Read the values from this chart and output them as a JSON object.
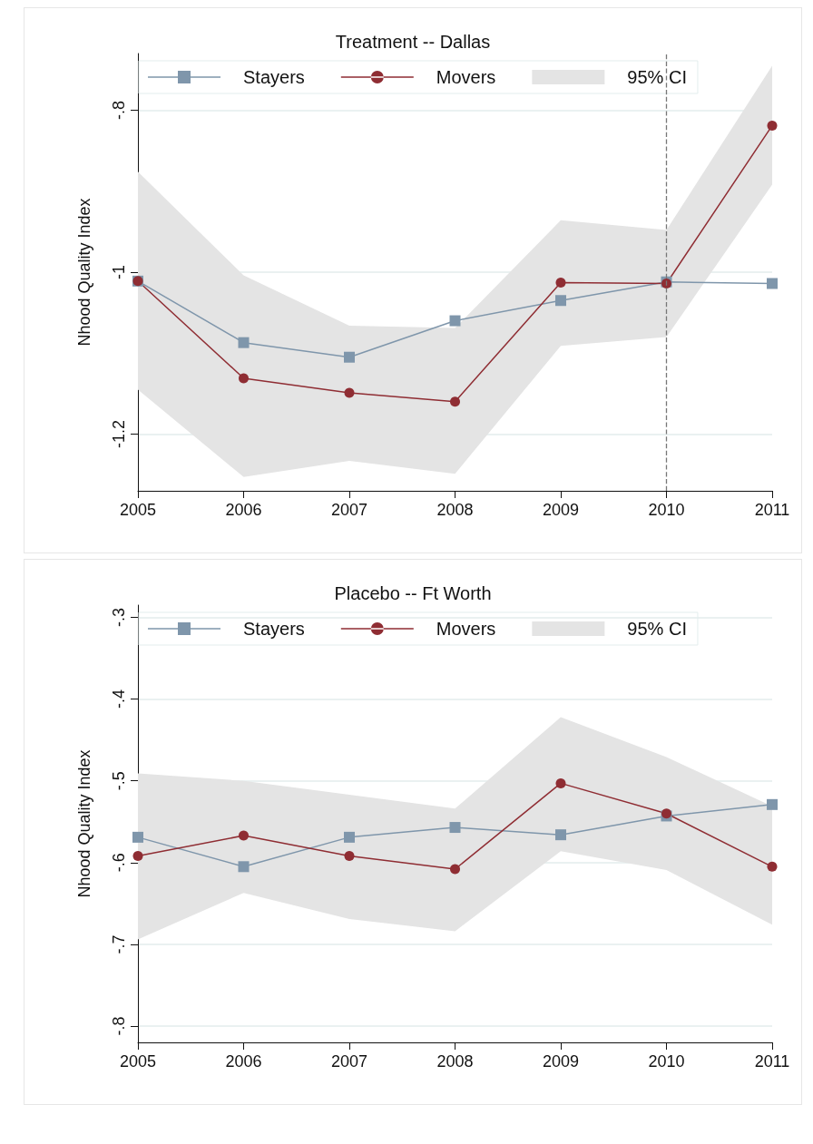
{
  "chart_data": [
    {
      "type": "line",
      "title": "Treatment -- Dallas",
      "ylabel": "Nhood Quality Index",
      "categories": [
        "2005",
        "2006",
        "2007",
        "2008",
        "2009",
        "2010",
        "2011"
      ],
      "ylim": [
        -1.27,
        -0.73
      ],
      "yticks": [
        {
          "value": -0.8,
          "label": "-.8"
        },
        -1,
        {
          "value": -1.2,
          "label": "-1.2"
        }
      ],
      "grid": "y",
      "legend": "top",
      "series": [
        {
          "name": "Stayers",
          "color": "#7f96ab",
          "marker": "square",
          "values": [
            -1.011,
            -1.087,
            -1.105,
            -1.06,
            -1.035,
            -1.012,
            -1.014
          ]
        },
        {
          "name": "Movers",
          "color": "#8f2d33",
          "marker": "circle",
          "values": [
            -1.011,
            -1.131,
            -1.149,
            -1.16,
            -1.013,
            -1.014,
            -0.819
          ]
        },
        {
          "name": "95% CI",
          "type": "area",
          "color": "#e4e4e4",
          "values": [
            null,
            null,
            null,
            null,
            null,
            null,
            null
          ],
          "lower": [
            -1.145,
            -1.253,
            -1.233,
            -1.249,
            -1.091,
            -1.08,
            -0.892
          ],
          "upper": [
            -0.876,
            -1.004,
            -1.066,
            -1.069,
            -0.936,
            -0.948,
            -0.745
          ]
        }
      ],
      "ref_lines": [
        {
          "axis": "x",
          "value": "2010",
          "color": "#777777",
          "line_style": "dashed"
        }
      ]
    },
    {
      "type": "line",
      "title": "Placebo -- Ft Worth",
      "ylabel": "Nhood Quality Index",
      "categories": [
        "2005",
        "2006",
        "2007",
        "2008",
        "2009",
        "2010",
        "2011"
      ],
      "ylim": [
        -0.82,
        -0.285
      ],
      "yticks": [
        {
          "value": -0.3,
          "label": "-.3"
        },
        {
          "value": -0.4,
          "label": "-.4"
        },
        {
          "value": -0.5,
          "label": "-.5"
        },
        {
          "value": -0.6,
          "label": "-.6"
        },
        {
          "value": -0.7,
          "label": "-.7"
        },
        {
          "value": -0.8,
          "label": "-.8"
        }
      ],
      "grid": "y",
      "legend": "top",
      "series": [
        {
          "name": "Stayers",
          "color": "#7f96ab",
          "marker": "square",
          "values": [
            -0.569,
            -0.605,
            -0.569,
            -0.557,
            -0.566,
            -0.543,
            -0.529
          ]
        },
        {
          "name": "Movers",
          "color": "#8f2d33",
          "marker": "circle",
          "values": [
            -0.592,
            -0.567,
            -0.592,
            -0.608,
            -0.503,
            -0.54,
            -0.605
          ]
        },
        {
          "name": "95% CI",
          "type": "area",
          "color": "#e4e4e4",
          "values": [
            null,
            null,
            null,
            null,
            null,
            null,
            null
          ],
          "lower": [
            -0.694,
            -0.637,
            -0.669,
            -0.684,
            -0.586,
            -0.609,
            -0.676
          ],
          "upper": [
            -0.491,
            -0.5,
            -0.517,
            -0.534,
            -0.422,
            -0.471,
            -0.531
          ]
        }
      ]
    }
  ]
}
